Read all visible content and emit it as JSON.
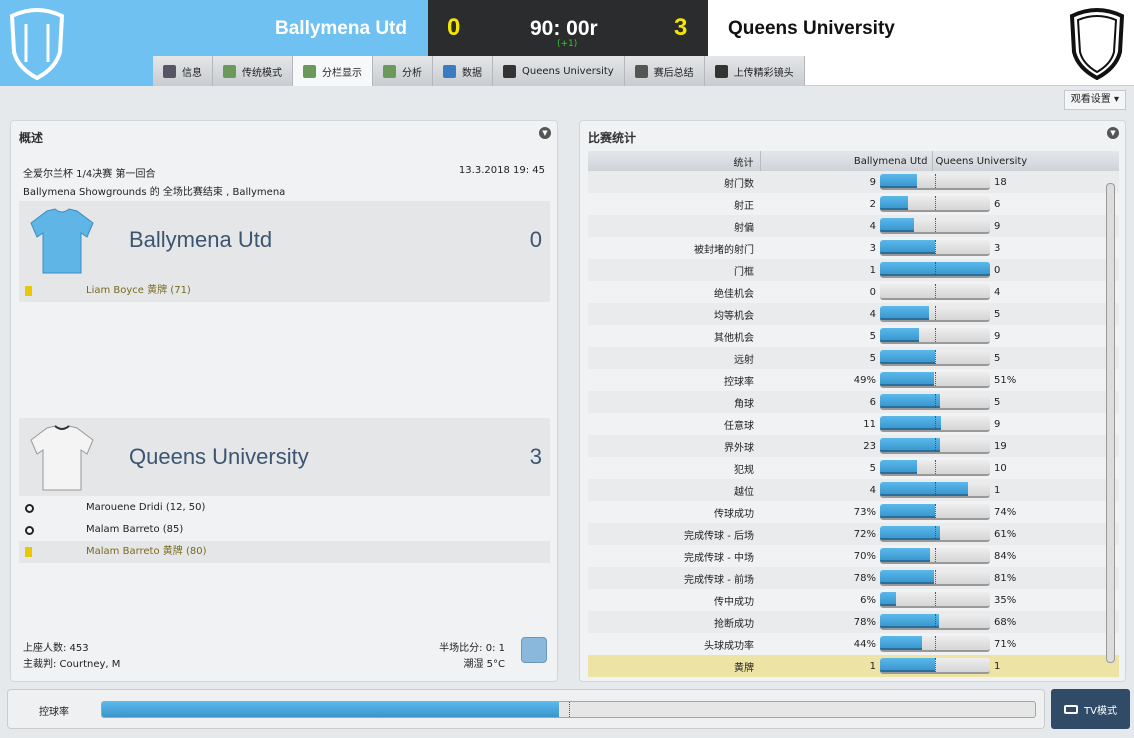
{
  "header": {
    "home_team": "Ballymena Utd",
    "away_team": "Queens University",
    "home_score": "0",
    "away_score": "3",
    "clock": "90: 00r",
    "added_time": "(+1)"
  },
  "tabs": [
    {
      "label": "信息",
      "icon": "info-icon",
      "color": "#556"
    },
    {
      "label": "传统模式",
      "icon": "pitch-icon",
      "color": "#6a9a5a"
    },
    {
      "label": "分栏显示",
      "icon": "split-view-icon",
      "color": "#6a9a5a"
    },
    {
      "label": "分析",
      "icon": "analysis-icon",
      "color": "#6a9a5a"
    },
    {
      "label": "数据",
      "icon": "stats-icon",
      "color": "#3b7bc0"
    },
    {
      "label": "Queens University",
      "icon": "team-icon",
      "color": "#333"
    },
    {
      "label": "赛后总结",
      "icon": "shield-icon",
      "color": "#555"
    },
    {
      "label": "上传精彩镜头",
      "icon": "camera-icon",
      "color": "#333"
    }
  ],
  "active_tab": 2,
  "view_settings": "观看设置",
  "overview": {
    "title": "概述",
    "competition": "全爱尔兰杯 1/4决赛 第一回合",
    "datetime": "13.3.2018 19: 45",
    "venue_line": "Ballymena Showgrounds 的 全场比赛结束 , Ballymena",
    "home": {
      "name": "Ballymena Utd",
      "score": "0",
      "events": [
        {
          "type": "yellow-card",
          "text": "Liam Boyce 黄牌 (71)"
        }
      ]
    },
    "away": {
      "name": "Queens University",
      "score": "3",
      "events": [
        {
          "type": "goal",
          "text": "Marouene Dridi (12, 50)"
        },
        {
          "type": "goal",
          "text": "Malam Barreto (85)"
        },
        {
          "type": "yellow-card",
          "text": "Malam Barreto 黄牌 (80)"
        }
      ]
    },
    "attendance": "上座人数: 453",
    "referee": "主裁判: Courtney, M",
    "halftime": "半场比分: 0: 1",
    "weather": "潮湿 5°C"
  },
  "stats": {
    "title": "比赛统计",
    "col_stat": "统计",
    "col_home": "Ballymena Utd",
    "col_away": "Queens University",
    "rows": [
      [
        "射门数",
        "9",
        "18",
        9,
        18
      ],
      [
        "射正",
        "2",
        "6",
        2,
        6
      ],
      [
        "射偏",
        "4",
        "9",
        4,
        9
      ],
      [
        "被封堵的射门",
        "3",
        "3",
        3,
        3
      ],
      [
        "门框",
        "1",
        "0",
        1,
        0
      ],
      [
        "绝佳机会",
        "0",
        "4",
        0,
        4
      ],
      [
        "均等机会",
        "4",
        "5",
        4,
        5
      ],
      [
        "其他机会",
        "5",
        "9",
        5,
        9
      ],
      [
        "远射",
        "5",
        "5",
        5,
        5
      ],
      [
        "控球率",
        "49%",
        "51%",
        49,
        51
      ],
      [
        "角球",
        "6",
        "5",
        6,
        5
      ],
      [
        "任意球",
        "11",
        "9",
        11,
        9
      ],
      [
        "界外球",
        "23",
        "19",
        23,
        19
      ],
      [
        "犯规",
        "5",
        "10",
        5,
        10
      ],
      [
        "越位",
        "4",
        "1",
        4,
        1
      ],
      [
        "传球成功",
        "73%",
        "74%",
        73,
        74
      ],
      [
        "完成传球 - 后场",
        "72%",
        "61%",
        72,
        61
      ],
      [
        "完成传球 - 中场",
        "70%",
        "84%",
        70,
        84
      ],
      [
        "完成传球 - 前场",
        "78%",
        "81%",
        78,
        81
      ],
      [
        "传中成功",
        "6%",
        "35%",
        6,
        35
      ],
      [
        "抢断成功",
        "78%",
        "68%",
        78,
        68
      ],
      [
        "头球成功率",
        "44%",
        "71%",
        44,
        71
      ],
      [
        "黄牌",
        "1",
        "1",
        1,
        1
      ]
    ]
  },
  "bottom": {
    "label": "控球率",
    "possession_home_pct": 49,
    "tv_mode": "TV模式"
  }
}
